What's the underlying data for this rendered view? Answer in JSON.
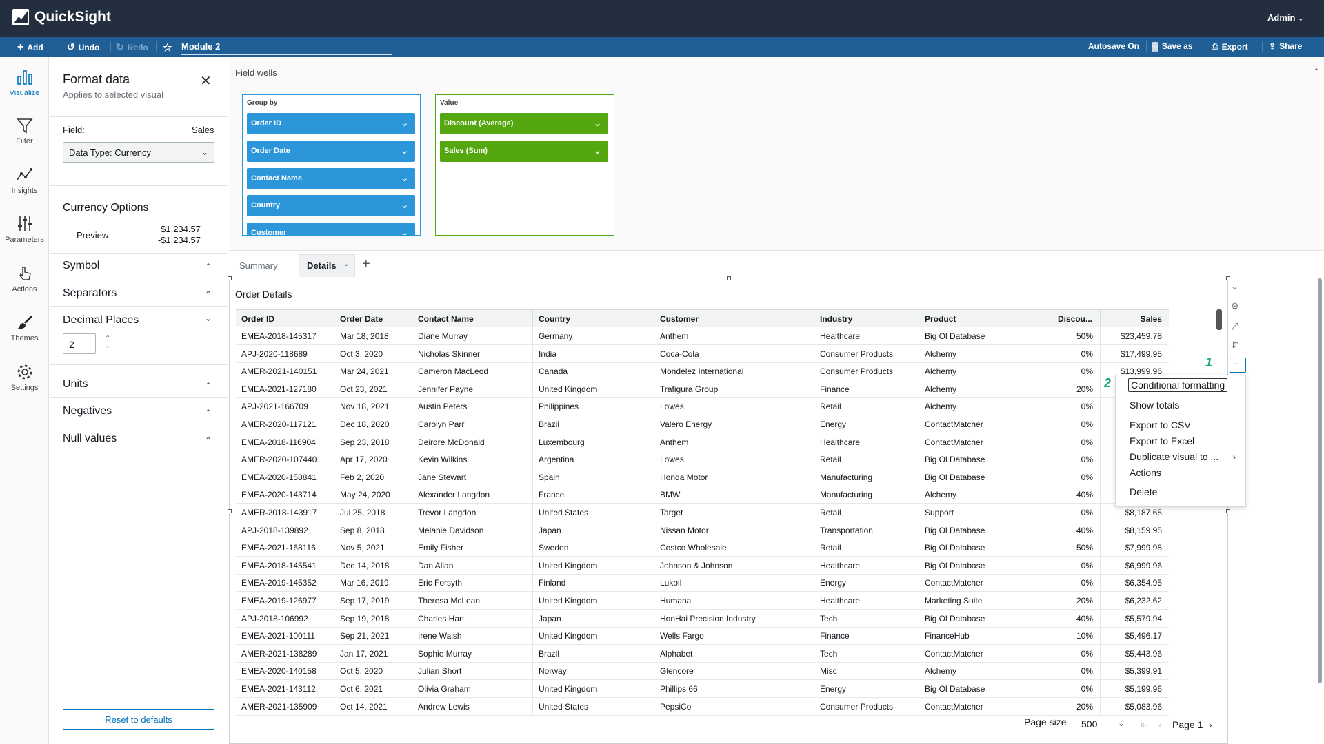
{
  "app": {
    "name": "QuickSight",
    "user": "Admin"
  },
  "toolbar": {
    "add": "Add",
    "undo": "Undo",
    "redo": "Redo",
    "analysis_title": "Module 2",
    "autosave": "Autosave On",
    "save_as": "Save as",
    "export": "Export",
    "share": "Share"
  },
  "rail": [
    {
      "label": "Visualize",
      "icon": "bar-chart-icon",
      "active": true
    },
    {
      "label": "Filter",
      "icon": "filter-icon"
    },
    {
      "label": "Insights",
      "icon": "insights-icon"
    },
    {
      "label": "Parameters",
      "icon": "sliders-icon"
    },
    {
      "label": "Actions",
      "icon": "pointer-icon"
    },
    {
      "label": "Themes",
      "icon": "brush-icon"
    },
    {
      "label": "Settings",
      "icon": "gear-icon"
    }
  ],
  "format_panel": {
    "title": "Format data",
    "subtitle": "Applies to selected visual",
    "field_label": "Field:",
    "field_value": "Sales",
    "data_type": "Data Type: Currency",
    "currency_options": "Currency Options",
    "preview_label": "Preview:",
    "preview_pos": "$1,234.57",
    "preview_neg": "-$1,234.57",
    "symbol": "Symbol",
    "separators": "Separators",
    "decimal_places": "Decimal Places",
    "decimal_value": "2",
    "units": "Units",
    "negatives": "Negatives",
    "null_values": "Null values",
    "reset": "Reset to defaults"
  },
  "field_wells": {
    "title": "Field wells",
    "group_by_label": "Group by",
    "group_by": [
      "Order ID",
      "Order Date",
      "Contact Name",
      "Country",
      "Customer"
    ],
    "value_label": "Value",
    "values": [
      "Discount (Average)",
      "Sales (Sum)"
    ]
  },
  "sheets": {
    "tab1": "Summary",
    "tab2": "Details"
  },
  "visual": {
    "title": "Order Details",
    "columns": [
      "Order ID",
      "Order Date",
      "Contact Name",
      "Country",
      "Customer",
      "Industry",
      "Product",
      "Discou...",
      "Sales"
    ],
    "rows": [
      [
        "EMEA-2018-145317",
        "Mar 18, 2018",
        "Diane Murray",
        "Germany",
        "Anthem",
        "Healthcare",
        "Big Ol Database",
        "50%",
        "$23,459.78"
      ],
      [
        "APJ-2020-118689",
        "Oct 3, 2020",
        "Nicholas Skinner",
        "India",
        "Coca-Cola",
        "Consumer Products",
        "Alchemy",
        "0%",
        "$17,499.95"
      ],
      [
        "AMER-2021-140151",
        "Mar 24, 2021",
        "Cameron MacLeod",
        "Canada",
        "Mondelez International",
        "Consumer Products",
        "Alchemy",
        "0%",
        "$13,999.96"
      ],
      [
        "EMEA-2021-127180",
        "Oct 23, 2021",
        "Jennifer Payne",
        "United Kingdom",
        "Trafigura Group",
        "Finance",
        "Alchemy",
        "20%",
        ""
      ],
      [
        "APJ-2021-166709",
        "Nov 18, 2021",
        "Austin Peters",
        "Philippines",
        "Lowes",
        "Retail",
        "Alchemy",
        "0%",
        ""
      ],
      [
        "AMER-2020-117121",
        "Dec 18, 2020",
        "Carolyn Parr",
        "Brazil",
        "Valero Energy",
        "Energy",
        "ContactMatcher",
        "0%",
        ""
      ],
      [
        "EMEA-2018-116904",
        "Sep 23, 2018",
        "Deirdre McDonald",
        "Luxembourg",
        "Anthem",
        "Healthcare",
        "ContactMatcher",
        "0%",
        ""
      ],
      [
        "AMER-2020-107440",
        "Apr 17, 2020",
        "Kevin Wilkins",
        "Argentina",
        "Lowes",
        "Retail",
        "Big Ol Database",
        "0%",
        ""
      ],
      [
        "EMEA-2020-158841",
        "Feb 2, 2020",
        "Jane Stewart",
        "Spain",
        "Honda Motor",
        "Manufacturing",
        "Big Ol Database",
        "0%",
        ""
      ],
      [
        "EMEA-2020-143714",
        "May 24, 2020",
        "Alexander Langdon",
        "France",
        "BMW",
        "Manufacturing",
        "Alchemy",
        "40%",
        ""
      ],
      [
        "AMER-2018-143917",
        "Jul 25, 2018",
        "Trevor Langdon",
        "United States",
        "Target",
        "Retail",
        "Support",
        "0%",
        "$8,187.65"
      ],
      [
        "APJ-2018-139892",
        "Sep 8, 2018",
        "Melanie Davidson",
        "Japan",
        "Nissan Motor",
        "Transportation",
        "Big Ol Database",
        "40%",
        "$8,159.95"
      ],
      [
        "EMEA-2021-168116",
        "Nov 5, 2021",
        "Emily Fisher",
        "Sweden",
        "Costco Wholesale",
        "Retail",
        "Big Ol Database",
        "50%",
        "$7,999.98"
      ],
      [
        "EMEA-2018-145541",
        "Dec 14, 2018",
        "Dan Allan",
        "United Kingdom",
        "Johnson & Johnson",
        "Healthcare",
        "Big Ol Database",
        "0%",
        "$6,999.96"
      ],
      [
        "EMEA-2019-145352",
        "Mar 16, 2019",
        "Eric Forsyth",
        "Finland",
        "Lukoil",
        "Energy",
        "ContactMatcher",
        "0%",
        "$6,354.95"
      ],
      [
        "EMEA-2019-126977",
        "Sep 17, 2019",
        "Theresa McLean",
        "United Kingdom",
        "Humana",
        "Healthcare",
        "Marketing Suite",
        "20%",
        "$6,232.62"
      ],
      [
        "APJ-2018-106992",
        "Sep 19, 2018",
        "Charles Hart",
        "Japan",
        "HonHai Precision Industry",
        "Tech",
        "Big Ol Database",
        "40%",
        "$5,579.94"
      ],
      [
        "EMEA-2021-100111",
        "Sep 21, 2021",
        "Irene Walsh",
        "United Kingdom",
        "Wells Fargo",
        "Finance",
        "FinanceHub",
        "10%",
        "$5,496.17"
      ],
      [
        "AMER-2021-138289",
        "Jan 17, 2021",
        "Sophie Murray",
        "Brazil",
        "Alphabet",
        "Tech",
        "ContactMatcher",
        "0%",
        "$5,443.96"
      ],
      [
        "EMEA-2020-140158",
        "Oct 5, 2020",
        "Julian Short",
        "Norway",
        "Glencore",
        "Misc",
        "Alchemy",
        "0%",
        "$5,399.91"
      ],
      [
        "EMEA-2021-143112",
        "Oct 6, 2021",
        "Olivia Graham",
        "United Kingdom",
        "Phillips 66",
        "Energy",
        "Big Ol Database",
        "0%",
        "$5,199.96"
      ],
      [
        "AMER-2021-135909",
        "Oct 14, 2021",
        "Andrew Lewis",
        "United States",
        "PepsiCo",
        "Consumer Products",
        "ContactMatcher",
        "20%",
        "$5,083.96"
      ]
    ]
  },
  "context_menu": {
    "items": [
      "Conditional formatting",
      "Show totals",
      "Export to CSV",
      "Export to Excel",
      "Duplicate visual to ...",
      "Actions",
      "Delete"
    ],
    "callout_1": "1",
    "callout_2": "2"
  },
  "pager": {
    "page_size_label": "Page size",
    "page_size": "500",
    "page": "Page 1"
  }
}
